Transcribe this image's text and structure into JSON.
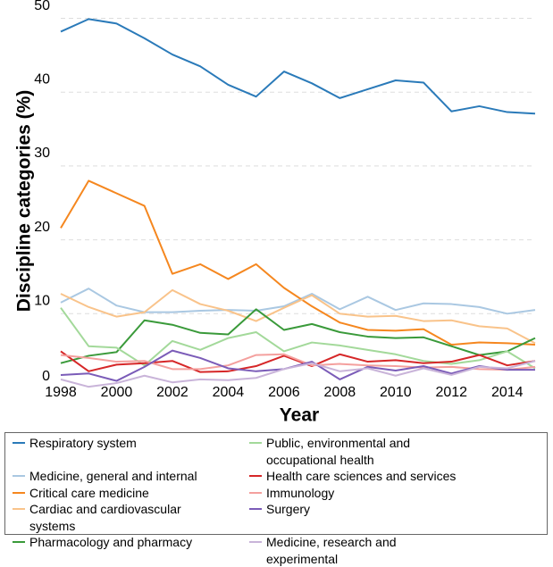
{
  "chart_data": {
    "type": "line",
    "x_label": "Year",
    "y_label": "Discipline categories (%)",
    "x": [
      1998,
      1999,
      2000,
      2001,
      2002,
      2003,
      2004,
      2005,
      2006,
      2007,
      2008,
      2009,
      2010,
      2011,
      2012,
      2013,
      2014,
      2015
    ],
    "xlim": [
      1998,
      2015
    ],
    "xticks": [
      1998,
      2000,
      2002,
      2004,
      2006,
      2008,
      2010,
      2012,
      2014
    ],
    "ylim": [
      0,
      52
    ],
    "yticks": [
      0,
      10,
      20,
      30,
      40,
      50
    ],
    "grid": true,
    "series": [
      {
        "name": "Respiratory system",
        "color": "#2a7ab9",
        "values": [
          48.2,
          49.9,
          49.3,
          47.3,
          45.1,
          43.5,
          41.0,
          39.4,
          42.8,
          41.2,
          39.2,
          40.4,
          41.6,
          41.3,
          37.4,
          38.1,
          37.3,
          37.1
        ]
      },
      {
        "name": "Medicine, general and internal",
        "color": "#aac8e2",
        "values": [
          11.5,
          13.4,
          11.1,
          10.2,
          10.2,
          10.4,
          10.5,
          10.4,
          11.0,
          12.7,
          10.6,
          12.3,
          10.5,
          11.4,
          11.3,
          10.9,
          10.0,
          10.5
        ]
      },
      {
        "name": "Critical care medicine",
        "color": "#f5871f",
        "values": [
          21.6,
          28.0,
          26.3,
          24.6,
          15.4,
          16.7,
          14.7,
          16.7,
          13.5,
          11.0,
          8.8,
          7.8,
          7.7,
          7.9,
          5.8,
          6.1,
          6.0,
          5.8
        ]
      },
      {
        "name": "Cardiac and cardiovascular systems",
        "color": "#f9c38a",
        "values": [
          12.7,
          10.9,
          9.6,
          10.2,
          13.2,
          11.3,
          10.4,
          9.0,
          10.8,
          12.5,
          10.0,
          9.6,
          9.7,
          9.0,
          9.1,
          8.3,
          8.0,
          6.0
        ]
      },
      {
        "name": "Pharmacology and pharmacy",
        "color": "#3a9a3a",
        "values": [
          3.3,
          4.3,
          4.8,
          9.1,
          8.5,
          7.4,
          7.2,
          10.6,
          7.8,
          8.6,
          7.5,
          6.9,
          6.7,
          6.8,
          5.6,
          4.4,
          4.9,
          6.7
        ]
      },
      {
        "name": "Public, environmental and occupational health",
        "color": "#a3d99a",
        "values": [
          10.8,
          5.6,
          5.4,
          3.0,
          6.3,
          5.1,
          6.7,
          7.5,
          4.9,
          6.1,
          5.7,
          5.1,
          4.5,
          3.6,
          3.2,
          3.7,
          4.9,
          2.6
        ]
      },
      {
        "name": "Health care sciences and services",
        "color": "#d62728",
        "values": [
          4.9,
          2.2,
          3.1,
          3.3,
          3.6,
          2.1,
          2.2,
          2.9,
          4.3,
          2.9,
          4.5,
          3.5,
          3.7,
          3.3,
          3.5,
          4.4,
          3.0,
          3.6
        ]
      },
      {
        "name": "Immunology",
        "color": "#f4a09e",
        "values": [
          4.4,
          4.0,
          3.5,
          3.6,
          2.5,
          2.5,
          3.0,
          4.4,
          4.5,
          3.0,
          3.2,
          3.0,
          2.9,
          2.7,
          2.8,
          2.5,
          2.4,
          2.8
        ]
      },
      {
        "name": "Surgery",
        "color": "#7b5cb8",
        "values": [
          1.7,
          1.9,
          0.9,
          2.8,
          5.0,
          4.0,
          2.6,
          2.2,
          2.5,
          3.5,
          1.1,
          2.8,
          2.3,
          2.9,
          1.9,
          2.9,
          2.4,
          2.4
        ]
      },
      {
        "name": "Medicine, research and experimental",
        "color": "#c9b4d9",
        "values": [
          1.1,
          0.1,
          0.6,
          1.6,
          0.7,
          1.1,
          1.0,
          1.3,
          2.5,
          3.3,
          2.2,
          2.6,
          1.6,
          2.6,
          1.7,
          2.8,
          2.6,
          3.6
        ]
      }
    ]
  }
}
